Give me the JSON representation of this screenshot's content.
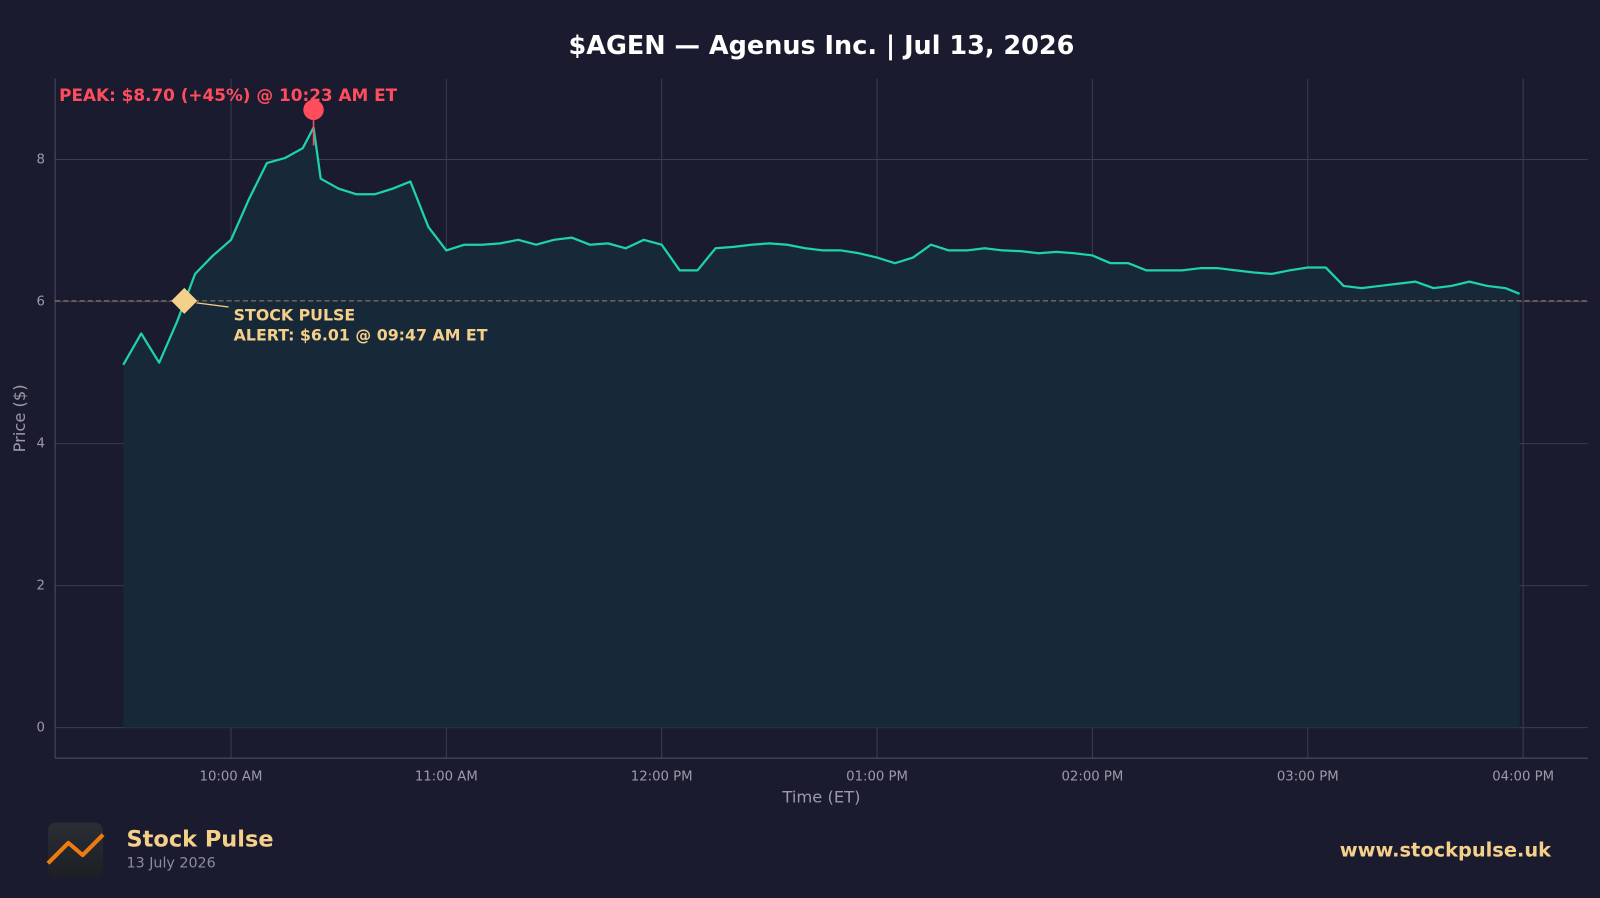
{
  "chart_data": {
    "type": "line",
    "title": "$AGEN — Agenus Inc.  |  Jul 13, 2026",
    "x_label": "Time (ET)",
    "y_label": "Price ($)",
    "color": "#1ed3ac",
    "fill_color": "#17293a",
    "x": [
      "09:30 AM",
      "09:35 AM",
      "09:40 AM",
      "09:45 AM",
      "09:50 AM",
      "09:55 AM",
      "10:00 AM",
      "10:05 AM",
      "10:10 AM",
      "10:15 AM",
      "10:20 AM",
      "10:23 AM",
      "10:25 AM",
      "10:30 AM",
      "10:35 AM",
      "10:40 AM",
      "10:45 AM",
      "10:50 AM",
      "10:55 AM",
      "11:00 AM",
      "11:05 AM",
      "11:10 AM",
      "11:15 AM",
      "11:20 AM",
      "11:25 AM",
      "11:30 AM",
      "11:35 AM",
      "11:40 AM",
      "11:45 AM",
      "11:50 AM",
      "11:55 AM",
      "12:00 PM",
      "12:05 PM",
      "12:10 PM",
      "12:15 PM",
      "12:20 PM",
      "12:25 PM",
      "12:30 PM",
      "12:35 PM",
      "12:40 PM",
      "12:45 PM",
      "12:50 PM",
      "12:55 PM",
      "01:00 PM",
      "01:05 PM",
      "01:10 PM",
      "01:15 PM",
      "01:20 PM",
      "01:25 PM",
      "01:30 PM",
      "01:35 PM",
      "01:40 PM",
      "01:45 PM",
      "01:50 PM",
      "01:55 PM",
      "02:00 PM",
      "02:05 PM",
      "02:10 PM",
      "02:15 PM",
      "02:20 PM",
      "02:25 PM",
      "02:30 PM",
      "02:35 PM",
      "02:40 PM",
      "02:45 PM",
      "02:50 PM",
      "02:55 PM",
      "03:00 PM",
      "03:05 PM",
      "03:10 PM",
      "03:15 PM",
      "03:20 PM",
      "03:25 PM",
      "03:30 PM",
      "03:35 PM",
      "03:40 PM",
      "03:45 PM",
      "03:50 PM",
      "03:55 PM",
      "03:59 PM"
    ],
    "values": [
      5.11,
      5.55,
      5.14,
      5.72,
      6.39,
      6.65,
      6.87,
      7.44,
      7.95,
      8.02,
      8.16,
      8.45,
      7.73,
      7.59,
      7.51,
      7.51,
      7.59,
      7.69,
      7.05,
      6.72,
      6.8,
      6.8,
      6.82,
      6.87,
      6.8,
      6.87,
      6.9,
      6.8,
      6.82,
      6.75,
      6.87,
      6.8,
      6.44,
      6.44,
      6.75,
      6.77,
      6.8,
      6.82,
      6.8,
      6.75,
      6.72,
      6.72,
      6.68,
      6.62,
      6.54,
      6.62,
      6.8,
      6.72,
      6.72,
      6.75,
      6.72,
      6.71,
      6.68,
      6.7,
      6.68,
      6.65,
      6.54,
      6.54,
      6.44,
      6.44,
      6.44,
      6.47,
      6.47,
      6.44,
      6.41,
      6.39,
      6.44,
      6.48,
      6.48,
      6.22,
      6.19,
      6.22,
      6.25,
      6.28,
      6.19,
      6.22,
      6.28,
      6.22,
      6.19,
      6.11
    ],
    "xlim": [
      "09:11 AM",
      "04:18 PM"
    ],
    "xticks": [
      "10:00 AM",
      "11:00 AM",
      "12:00 PM",
      "01:00 PM",
      "02:00 PM",
      "03:00 PM",
      "04:00 PM"
    ],
    "ylim": [
      -0.43,
      9.14
    ],
    "yticks": [
      0,
      2,
      4,
      6,
      8
    ],
    "grid": true,
    "peak": {
      "x": "10:23 AM",
      "value": 8.7,
      "color": "#ff4d5e",
      "label": "PEAK: $8.70 (+45%) @ 10:23 AM ET"
    },
    "alert": {
      "x": "09:47 AM",
      "value": 6.01,
      "color": "#f5d08a",
      "label": [
        "STOCK PULSE",
        "ALERT: $6.01 @ 09:47 AM ET"
      ]
    }
  },
  "footer": {
    "brand": "Stock Pulse",
    "date": "13 July 2026",
    "url": "www.stockpulse.uk"
  }
}
